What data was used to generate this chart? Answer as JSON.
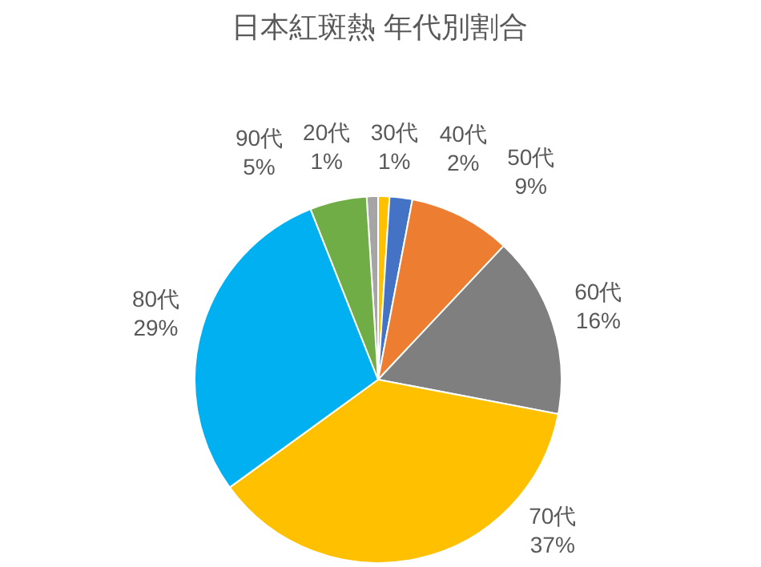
{
  "chart_data": {
    "type": "pie",
    "title": "日本紅斑熱 年代別割合",
    "categories": [
      "20代",
      "30代",
      "40代",
      "50代",
      "60代",
      "70代",
      "80代",
      "90代"
    ],
    "values": [
      1,
      1,
      2,
      9,
      16,
      37,
      29,
      5
    ],
    "colors": [
      "#a5a5a5",
      "#ffc000",
      "#4472c4",
      "#ed7d31",
      "#7f7f7f",
      "#ffc000",
      "#00b0f0",
      "#70ad47"
    ],
    "value_labels": [
      "1%",
      "1%",
      "2%",
      "9%",
      "16%",
      "37%",
      "29%",
      "5%"
    ],
    "legend": false
  }
}
